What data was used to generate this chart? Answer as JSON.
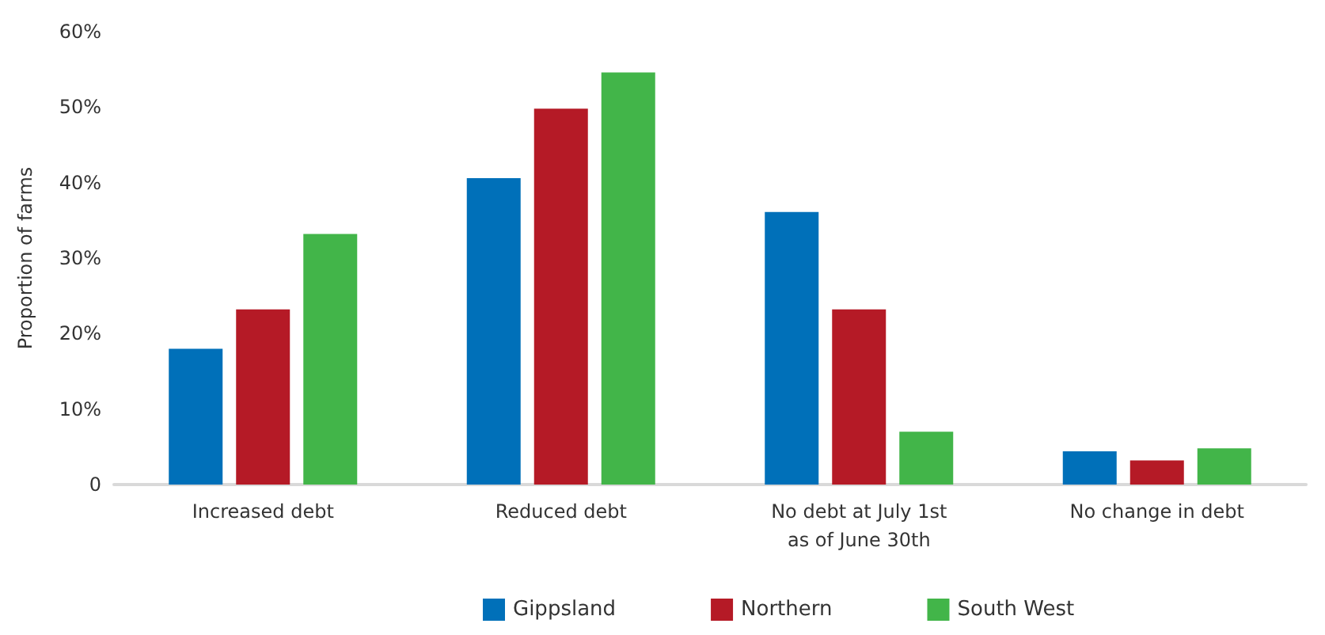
{
  "chart_data": {
    "type": "bar",
    "ylabel": "Proportion of farms",
    "categories": [
      "Increased debt",
      "Reduced debt",
      "No debt at July 1st\nas of June 30th",
      "No change in debt"
    ],
    "series": [
      {
        "name": "Gippsland",
        "color": "#0070b9",
        "values": [
          18,
          40.6,
          36.1,
          4.4
        ]
      },
      {
        "name": "Northern",
        "color": "#b51a26",
        "values": [
          23.2,
          49.8,
          23.2,
          3.2
        ]
      },
      {
        "name": "South West",
        "color": "#42b549",
        "values": [
          33.2,
          54.6,
          7,
          4.8
        ]
      }
    ],
    "ylim": [
      0,
      60
    ],
    "yticks": [
      0,
      {
        "value": 10,
        "label": "10%"
      },
      {
        "value": 20,
        "label": "20%"
      },
      {
        "value": 30,
        "label": "30%"
      },
      {
        "value": 40,
        "label": "40%"
      },
      {
        "value": 50,
        "label": "50%"
      },
      {
        "value": 60,
        "label": "60%"
      }
    ],
    "grid": false,
    "legend": "bottom"
  }
}
